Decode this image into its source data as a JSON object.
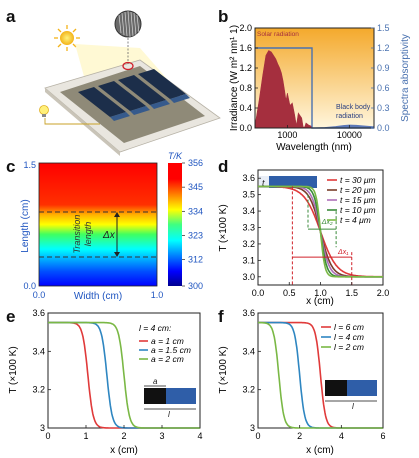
{
  "figure": {
    "panel_labels": {
      "a": "a",
      "b": "b",
      "c": "c",
      "d": "d",
      "e": "e",
      "f": "f"
    }
  },
  "chart_data": [
    {
      "panel": "b",
      "type": "area",
      "xlabel": "Wavelength (nm)",
      "ylabel": "Irradiance (W m² nm¹ 1)",
      "y2label": "Spectra absorptivity",
      "x_scale": "log",
      "xticks": [
        "1000",
        "10000"
      ],
      "xlim": [
        300,
        25000
      ],
      "ylim": [
        0,
        2.0
      ],
      "yticks": [
        "0.0",
        "0.4",
        "0.8",
        "1.2",
        "1.6",
        "2.0"
      ],
      "y2lim": [
        0,
        1.5
      ],
      "y2ticks": [
        "0.0",
        "0.3",
        "0.6",
        "0.9",
        "1.2",
        "1.5"
      ],
      "annotations": [
        "Solar radiation",
        "Black body",
        "radiation"
      ],
      "colors": {
        "solar": "#a52f3e",
        "blackbody": "#5d79b8",
        "absorptivity": "#4a72b0",
        "bg_top": "#f4a92c",
        "bg_bottom": "#fff6dd"
      },
      "solar_spectrum": {
        "x": [
          300,
          350,
          400,
          450,
          500,
          550,
          600,
          650,
          700,
          750,
          800,
          850,
          900,
          950,
          1000,
          1100,
          1200,
          1300,
          1400,
          1500,
          1600,
          1700,
          1800,
          1900,
          2000,
          2200,
          2500
        ],
        "y": [
          0.05,
          0.55,
          1.05,
          1.45,
          1.55,
          1.52,
          1.45,
          1.38,
          1.28,
          1.2,
          1.1,
          0.95,
          0.75,
          0.55,
          0.7,
          0.45,
          0.5,
          0.28,
          0.05,
          0.3,
          0.25,
          0.2,
          0.02,
          0.02,
          0.1,
          0.06,
          0.03
        ]
      },
      "blackbody_spectrum": {
        "x": [
          2500,
          4000,
          6000,
          8000,
          10000,
          13000,
          16000,
          20000,
          25000
        ],
        "y": [
          0.0,
          0.01,
          0.03,
          0.05,
          0.06,
          0.055,
          0.045,
          0.035,
          0.025
        ]
      },
      "absorptivity_step": {
        "x": [
          300,
          2500,
          2500,
          25000
        ],
        "y2": [
          1.2,
          1.2,
          0.0,
          0.0
        ]
      }
    },
    {
      "panel": "c",
      "type": "heatmap",
      "xlabel": "Width (cm)",
      "ylabel": "Length (cm)",
      "xlim": [
        0,
        1.0
      ],
      "ylim": [
        0,
        1.5
      ],
      "xticks": [
        "0.0",
        "1.0"
      ],
      "yticks": [
        "0.0",
        "1.5"
      ],
      "colorbar_title": "T/K",
      "colorbar_ticks": [
        "300",
        "312",
        "323",
        "334",
        "345",
        "356"
      ],
      "colorbar_range": [
        300,
        356
      ],
      "annotations": [
        "Transition",
        "length",
        "Δx"
      ],
      "transition_band_y": [
        0.55,
        0.95
      ]
    },
    {
      "panel": "d",
      "type": "line",
      "xlabel": "x (cm)",
      "ylabel": "T (×100 K)",
      "xlim": [
        0,
        2.0
      ],
      "ylim": [
        2.95,
        3.65
      ],
      "xticks": [
        "0.0",
        "0.5",
        "1.0",
        "1.5",
        "2.0"
      ],
      "yticks": [
        "3.0",
        "3.1",
        "3.2",
        "3.3",
        "3.4",
        "3.5",
        "3.6"
      ],
      "legend": [
        "t = 30 μm",
        "t = 20 μm",
        "t = 15 μm",
        "t = 10 μm",
        "t = 4 μm"
      ],
      "inset_label": "t",
      "annotations": [
        "Δx₁",
        "Δx₂"
      ],
      "dx1": [
        0.55,
        1.5
      ],
      "dx2": [
        0.8,
        1.25
      ],
      "T_high": 3.55,
      "T_low": 3.0,
      "series": [
        {
          "name": "t = 30 μm",
          "color": "#e03a3a",
          "center": 1.0,
          "width": 0.13
        },
        {
          "name": "t = 20 μm",
          "color": "#7a3d2a",
          "center": 1.0,
          "width": 0.09
        },
        {
          "name": "t = 15 μm",
          "color": "#ad6fb8",
          "center": 1.0,
          "width": 0.07
        },
        {
          "name": "t = 10 μm",
          "color": "#3b8a3b",
          "center": 1.0,
          "width": 0.05
        },
        {
          "name": "t = 4 μm",
          "color": "#7ab845",
          "center": 1.0,
          "width": 0.035
        }
      ]
    },
    {
      "panel": "e",
      "type": "line",
      "xlabel": "x (cm)",
      "ylabel": "T (×100 K)",
      "xlim": [
        0,
        4
      ],
      "ylim": [
        3.0,
        3.6
      ],
      "xticks": [
        "0",
        "1",
        "2",
        "3",
        "4"
      ],
      "yticks": [
        "3",
        "3.2",
        "3.4",
        "3.6"
      ],
      "legend_title": "l = 4 cm:",
      "legend": [
        "a = 1 cm",
        "a = 1.5 cm",
        "a = 2 cm"
      ],
      "inset_labels": [
        "a",
        "l"
      ],
      "T_high": 3.55,
      "T_low": 3.0,
      "series": [
        {
          "name": "a = 1 cm",
          "color": "#e03a3a",
          "center": 1.05,
          "width": 0.07
        },
        {
          "name": "a = 1.5 cm",
          "color": "#2e86c1",
          "center": 1.55,
          "width": 0.07
        },
        {
          "name": "a = 2 cm",
          "color": "#7ab845",
          "center": 2.0,
          "width": 0.07
        }
      ]
    },
    {
      "panel": "f",
      "type": "line",
      "xlabel": "x (cm)",
      "ylabel": "T (×100 K)",
      "xlim": [
        0,
        6
      ],
      "ylim": [
        3.0,
        3.6
      ],
      "xticks": [
        "0",
        "2",
        "4",
        "6"
      ],
      "yticks": [
        "3",
        "3.2",
        "3.4",
        "3.6"
      ],
      "legend": [
        "l = 6 cm",
        "l = 4 cm",
        "l = 2 cm"
      ],
      "inset_labels": [
        "l"
      ],
      "T_high": 3.55,
      "T_low": 3.0,
      "series": [
        {
          "name": "l = 6 cm",
          "color": "#e03a3a",
          "center": 3.0,
          "width": 0.12
        },
        {
          "name": "l = 4 cm",
          "color": "#2e86c1",
          "center": 2.0,
          "width": 0.12
        },
        {
          "name": "l = 2 cm",
          "color": "#7ab845",
          "center": 1.0,
          "width": 0.12
        }
      ]
    }
  ]
}
